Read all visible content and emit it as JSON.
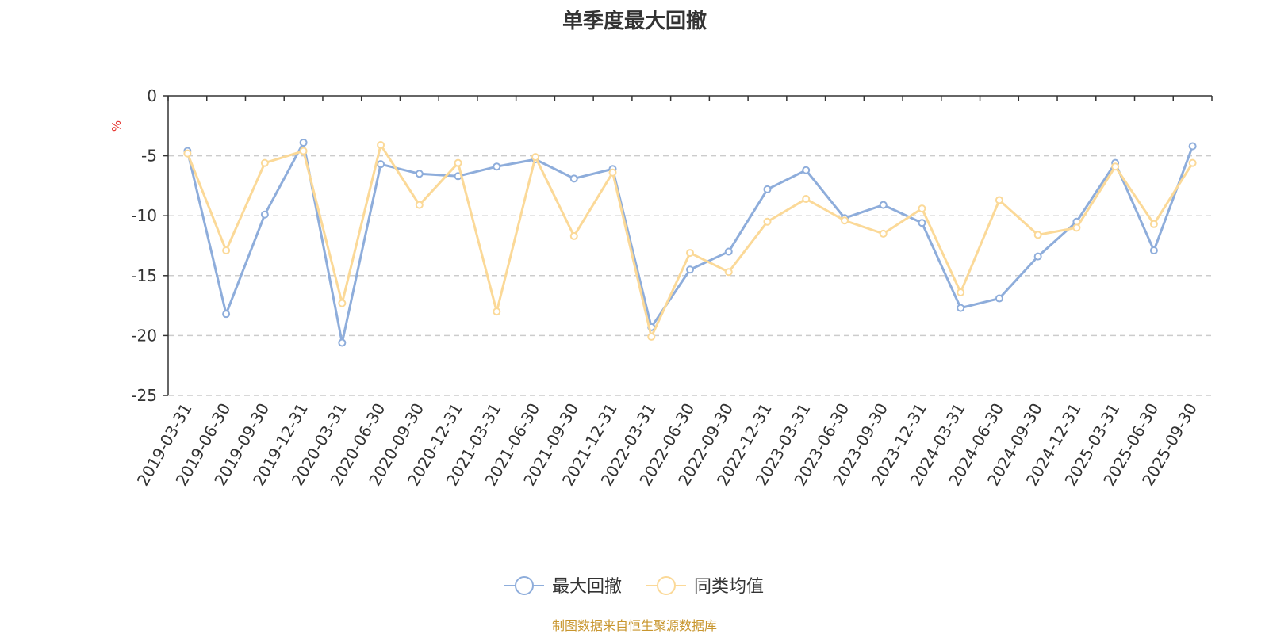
{
  "chart_data": {
    "type": "line",
    "title": "单季度最大回撤",
    "ylabel": "%",
    "xlabel": "",
    "ylim": [
      -25,
      0
    ],
    "yticks": [
      0,
      -5,
      -10,
      -15,
      -20,
      -25
    ],
    "grid": true,
    "legend_position": "bottom-center",
    "categories": [
      "2019-03-31",
      "2019-06-30",
      "2019-09-30",
      "2019-12-31",
      "2020-03-31",
      "2020-06-30",
      "2020-09-30",
      "2020-12-31",
      "2021-03-31",
      "2021-06-30",
      "2021-09-30",
      "2021-12-31",
      "2022-03-31",
      "2022-06-30",
      "2022-09-30",
      "2022-12-31",
      "2023-03-31",
      "2023-06-30",
      "2023-09-30",
      "2023-12-31",
      "2024-03-31",
      "2024-06-30",
      "2024-09-30",
      "2024-12-31",
      "2025-03-31",
      "2025-06-30",
      "2025-09-30"
    ],
    "series": [
      {
        "name": "最大回撤",
        "color": "#8eaddb",
        "values": [
          -4.6,
          -18.2,
          -9.9,
          -3.9,
          -20.6,
          -5.7,
          -6.5,
          -6.7,
          -5.9,
          -5.3,
          -6.9,
          -6.1,
          -19.3,
          -14.5,
          -13.0,
          -7.8,
          -6.2,
          -10.2,
          -9.1,
          -10.6,
          -17.7,
          -16.9,
          -13.4,
          -10.5,
          -5.6,
          -12.9,
          -4.2
        ]
      },
      {
        "name": "同类均值",
        "color": "#fbd998",
        "values": [
          -4.8,
          -12.9,
          -5.6,
          -4.6,
          -17.3,
          -4.1,
          -9.1,
          -5.6,
          -18.0,
          -5.1,
          -11.7,
          -6.4,
          -20.1,
          -13.1,
          -14.7,
          -10.5,
          -8.6,
          -10.4,
          -11.5,
          -9.4,
          -16.4,
          -8.7,
          -11.6,
          -11.0,
          -5.9,
          -10.7,
          -5.6
        ]
      }
    ]
  },
  "footer": {
    "source": "制图数据来自恒生聚源数据库"
  }
}
